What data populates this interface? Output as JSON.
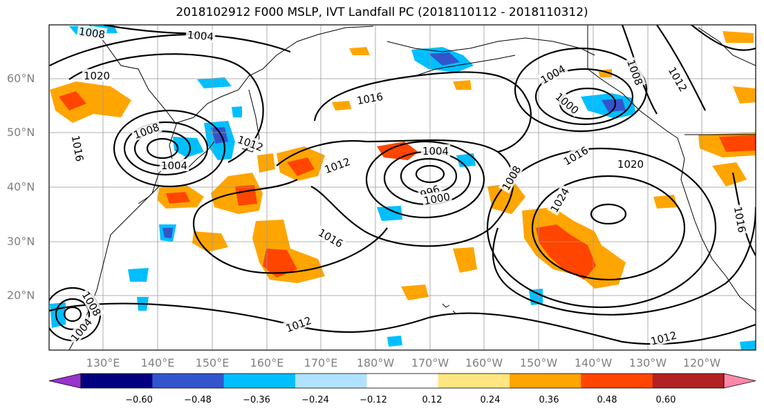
{
  "title": "2018102912 F000 MSLP, IVT Landfall PC (2018110112 - 2018110312)",
  "lat_labels": [
    "60°N",
    "50°N",
    "40°N",
    "30°N",
    "20°N"
  ],
  "lon_labels": [
    "130°E",
    "140°E",
    "150°E",
    "160°E",
    "170°E",
    "180°W",
    "170°W",
    "160°W",
    "150°W",
    "140°W",
    "130°W",
    "120°W"
  ],
  "colorbar": {
    "colors": [
      "#9933cc",
      "#000080",
      "#3355cc",
      "#00bfff",
      "#b0e2ff",
      "#ffffff",
      "#ffe680",
      "#ffa500",
      "#ff4500",
      "#b22222",
      "#ff88aa"
    ],
    "tick_labels": [
      "−0.60",
      "−0.48",
      "−0.36",
      "−0.24",
      "−0.12",
      "0.12",
      "0.24",
      "0.36",
      "0.48",
      "0.60"
    ]
  },
  "isobar_labels": [
    "1008",
    "1004",
    "1020",
    "1008",
    "1016",
    "1004",
    "1012",
    "1016",
    "1012",
    "1004",
    "996",
    "1000",
    "1008",
    "1016",
    "1020",
    "1024",
    "1004",
    "1000",
    "1008",
    "1012",
    "1016",
    "1008",
    "1004",
    "1012",
    "1012",
    "1016"
  ]
}
